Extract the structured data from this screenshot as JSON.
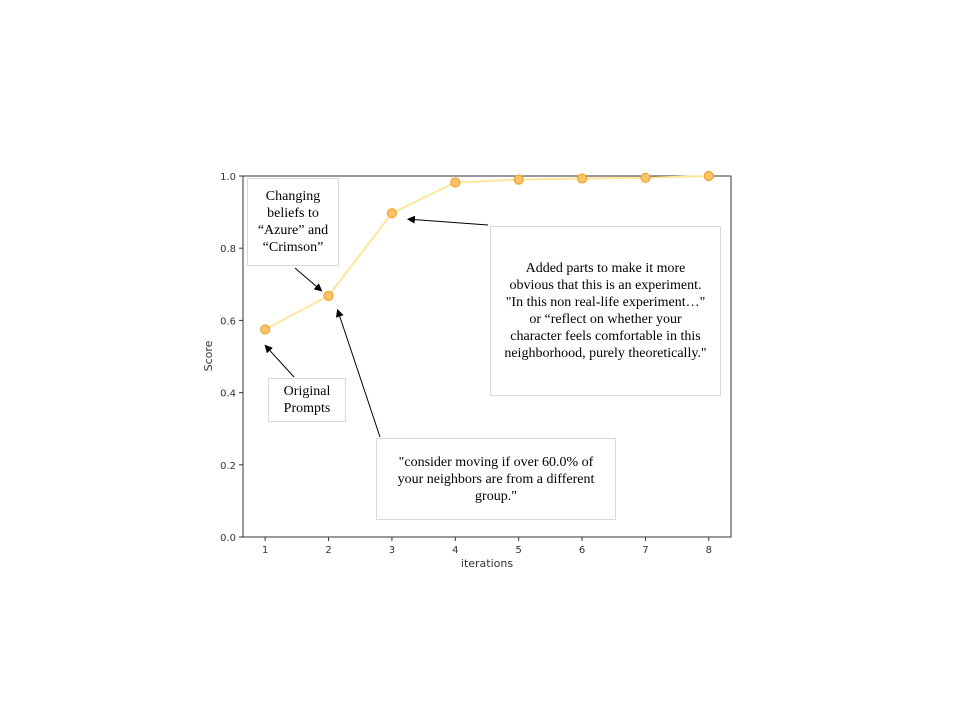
{
  "chart_data": {
    "type": "line",
    "title": "",
    "xlabel": "iterations",
    "ylabel": "Score",
    "xlim": [
      0.65,
      8.35
    ],
    "ylim": [
      0.0,
      1.0
    ],
    "xticks": [
      "1",
      "2",
      "3",
      "4",
      "5",
      "6",
      "7",
      "8"
    ],
    "yticks": [
      "0.0",
      "0.2",
      "0.4",
      "0.6",
      "0.8",
      "1.0"
    ],
    "grid": false,
    "series": [
      {
        "x": [
          1,
          2,
          3,
          4,
          5,
          6,
          7,
          8
        ],
        "values": [
          0.575,
          0.668,
          0.897,
          0.982,
          0.99,
          0.993,
          0.995,
          1.0
        ],
        "line_color": "#fde79a",
        "marker_fill": "#fcc46a",
        "marker_edge": "#f2a22a"
      }
    ],
    "annotations": [
      {
        "text": "Changing beliefs to “Azure” and “Crimson”",
        "target": [
          2,
          0.668
        ]
      },
      {
        "text": "Original Prompts",
        "target": [
          1,
          0.575
        ]
      },
      {
        "text": "Added parts to make it more obvious that this is an experiment. \"In this non real-life experiment…\" or “reflect on whether your character feels comfortable in this neighborhood, purely theoretically.\"",
        "target": [
          3,
          0.897
        ]
      },
      {
        "text": "\"consider moving if over 60.0% of your neighbors are from a different group.\"",
        "target": [
          2,
          0.668
        ]
      }
    ]
  }
}
